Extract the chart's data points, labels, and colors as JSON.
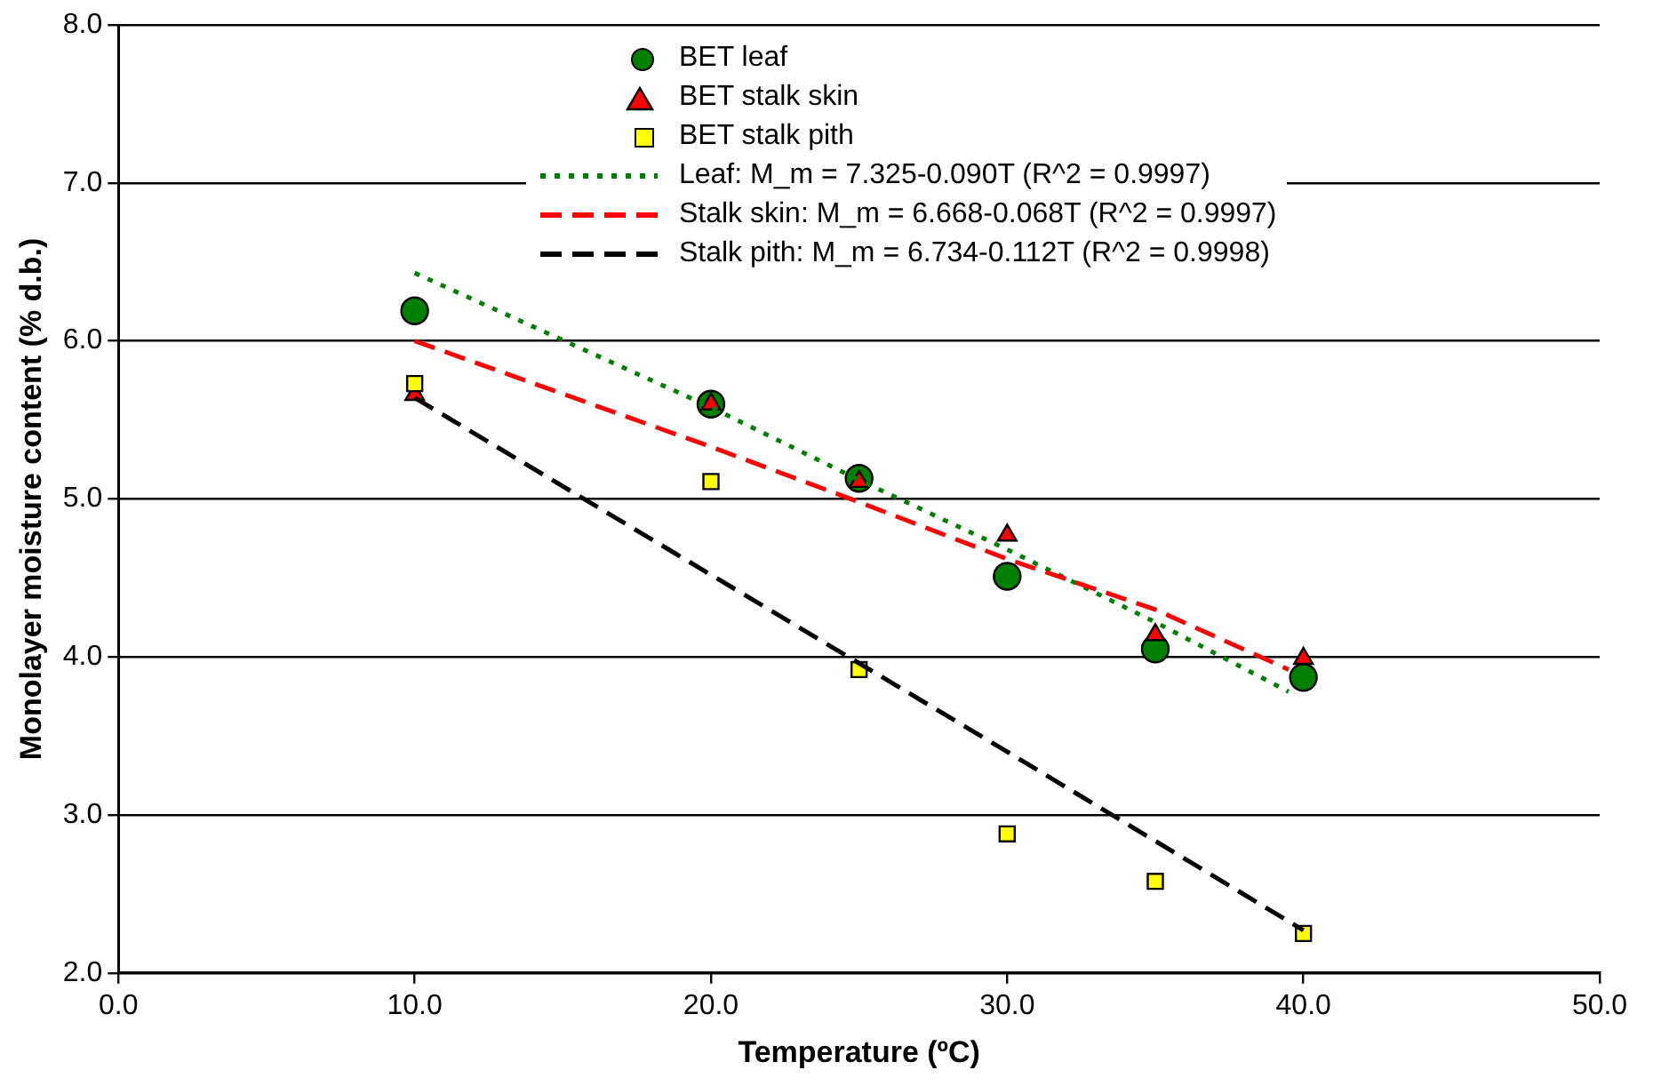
{
  "chart_data": {
    "type": "scatter",
    "xlabel": "Temperature (ºC)",
    "ylabel": "Monolayer moisture content (% d.b.)",
    "xlim": [
      0,
      50
    ],
    "xticks": [
      {
        "value": 0,
        "label": "0.0"
      },
      {
        "value": 10,
        "label": "10.0"
      },
      {
        "value": 20,
        "label": "20.0"
      },
      {
        "value": 30,
        "label": "30.0"
      },
      {
        "value": 40,
        "label": "40.0"
      },
      {
        "value": 50,
        "label": "50.0"
      }
    ],
    "ylim": [
      2,
      8
    ],
    "yticks": [
      {
        "value": 2,
        "label": "2.0"
      },
      {
        "value": 3,
        "label": "3.0"
      },
      {
        "value": 4,
        "label": "4.0"
      },
      {
        "value": 5,
        "label": "5.0"
      },
      {
        "value": 6,
        "label": "6.0"
      },
      {
        "value": 7,
        "label": "7.0"
      },
      {
        "value": 8,
        "label": "8.0"
      }
    ],
    "grid": "y",
    "legend": "top",
    "series": [
      {
        "name": "BET leaf",
        "marker": "circle",
        "color": "#008000",
        "x": [
          10,
          20,
          25,
          30,
          35,
          40
        ],
        "values": [
          6.19,
          5.6,
          5.13,
          4.51,
          4.05,
          3.87
        ]
      },
      {
        "name": "BET stalk skin",
        "marker": "triangle",
        "color": "#ff0000",
        "x": [
          10,
          20,
          25,
          30,
          35,
          40
        ],
        "values": [
          5.66,
          5.6,
          5.11,
          4.77,
          4.14,
          3.99
        ]
      },
      {
        "name": "BET stalk pith",
        "marker": "square",
        "color": "#ffff00",
        "x": [
          10,
          20,
          25,
          30,
          35,
          40
        ],
        "values": [
          5.73,
          5.11,
          3.92,
          2.88,
          2.58,
          2.25
        ]
      },
      {
        "name": "Leaf:  M_m = 7.325-0.090T  (R^2 = 0.9997)",
        "type": "line",
        "line_style": "dotted",
        "marker": "none",
        "color": "#008000",
        "x": [
          10,
          20,
          25,
          30,
          35,
          39.5
        ],
        "values": [
          6.43,
          5.58,
          5.12,
          4.68,
          4.22,
          3.78
        ]
      },
      {
        "name": "Stalk skin:  M_m = 6.668-0.068T  (R^2 = 0.9997)",
        "type": "line",
        "line_style": "dashed",
        "marker": "none",
        "color": "#ff0000",
        "x": [
          10,
          20,
          25,
          30,
          35,
          39.5
        ],
        "values": [
          6.0,
          5.33,
          4.98,
          4.62,
          4.3,
          3.92
        ]
      },
      {
        "name": "Stalk pith:  M_m = 6.734-0.112T  (R^2 = 0.9998)",
        "type": "line",
        "line_style": "dashed",
        "marker": "none",
        "color": "#000000",
        "x": [
          10,
          20,
          30,
          40
        ],
        "values": [
          5.64,
          4.52,
          3.4,
          2.27
        ]
      }
    ]
  }
}
